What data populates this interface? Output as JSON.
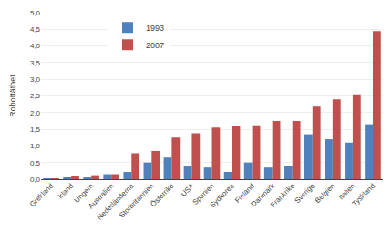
{
  "chart_data": {
    "type": "bar",
    "categories": [
      "Grekland",
      "Irland",
      "Ungern",
      "Australien",
      "Nederländerna",
      "Storbritannien",
      "Österrike",
      "USA",
      "Spanien",
      "Sydkorea",
      "Finland",
      "Danmark",
      "Frankrike",
      "Sverige",
      "Belgien",
      "Italien",
      "Tyskland"
    ],
    "series": [
      {
        "name": "1993",
        "color": "#4f81bd",
        "values": [
          0.02,
          0.05,
          0.05,
          0.15,
          0.22,
          0.5,
          0.65,
          0.4,
          0.35,
          0.22,
          0.5,
          0.35,
          0.4,
          1.35,
          1.2,
          1.1,
          1.65
        ]
      },
      {
        "name": "2007",
        "color": "#c0504d",
        "values": [
          0.02,
          0.1,
          0.12,
          0.15,
          0.78,
          0.85,
          1.25,
          1.38,
          1.55,
          1.6,
          1.62,
          1.75,
          1.75,
          2.18,
          2.4,
          2.55,
          4.45
        ]
      }
    ],
    "ylabel": "Robottäthet",
    "ylim": [
      0,
      5.0
    ],
    "yticks": [
      {
        "value": 0.0,
        "label": "0,0"
      },
      {
        "value": 0.5,
        "label": "0,5"
      },
      {
        "value": 1.0,
        "label": "1,0"
      },
      {
        "value": 1.5,
        "label": "1,5"
      },
      {
        "value": 2.0,
        "label": "2,0"
      },
      {
        "value": 2.5,
        "label": "2,5"
      },
      {
        "value": 3.0,
        "label": "3,0"
      },
      {
        "value": 3.5,
        "label": "3,5"
      },
      {
        "value": 4.0,
        "label": "4,0"
      },
      {
        "value": 4.5,
        "label": "4,5"
      },
      {
        "value": 5.0,
        "label": "5,0"
      }
    ],
    "grid": true,
    "legend": "upper left"
  }
}
